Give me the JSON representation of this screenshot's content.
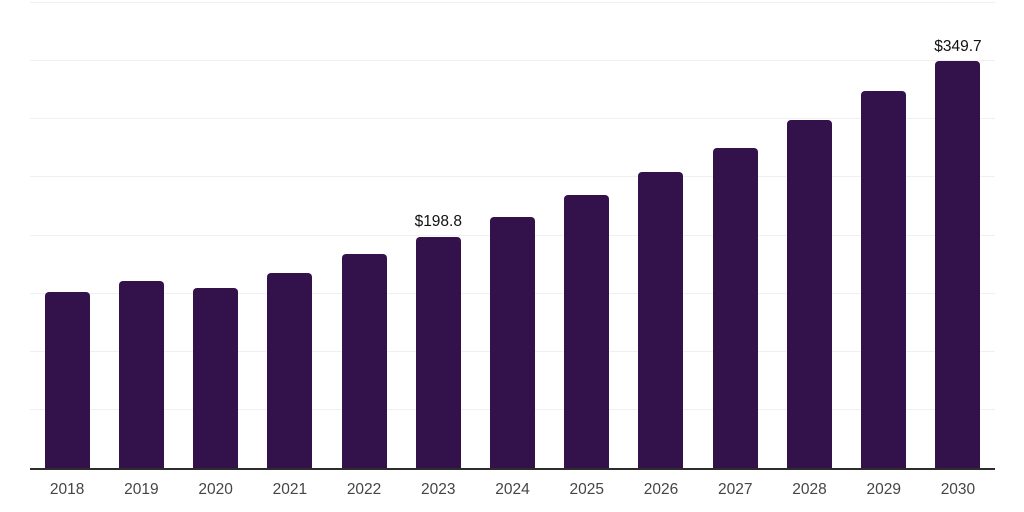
{
  "chart_data": {
    "type": "bar",
    "title": "",
    "xlabel": "",
    "ylabel": "",
    "categories": [
      "2018",
      "2019",
      "2020",
      "2021",
      "2022",
      "2023",
      "2024",
      "2025",
      "2026",
      "2027",
      "2028",
      "2029",
      "2030"
    ],
    "values": [
      151.8,
      161.0,
      155.2,
      167.5,
      184.3,
      198.8,
      216.1,
      234.9,
      254.6,
      275.7,
      299.2,
      324.3,
      349.7
    ],
    "value_prefix": "$",
    "annotations": [
      {
        "category": "2023",
        "text": "$198.8"
      },
      {
        "category": "2030",
        "text": "$349.7"
      }
    ],
    "ylim": [
      0,
      400
    ],
    "gridline_interval": 50,
    "grid": true,
    "y_tick_labels_shown": false,
    "legend": "none",
    "colors": {
      "bar": "#33114b",
      "gridline": "#f0f0f0",
      "axis_line": "#2d2d2d",
      "annotation_text": "#111111",
      "tick_label_text": "#454545",
      "background": "#ffffff"
    }
  }
}
